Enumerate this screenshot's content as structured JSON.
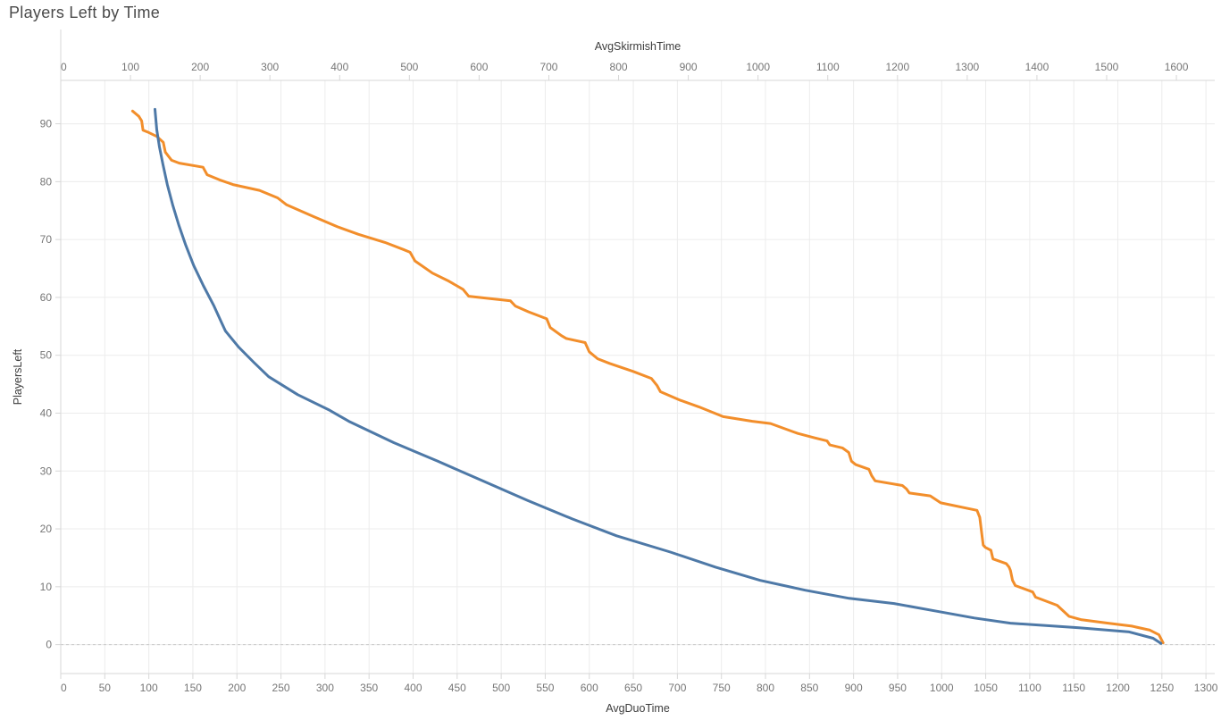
{
  "title": "Players Left by Time",
  "colors": {
    "title": "#4a4a4a",
    "axis_title": "#3d3d3d",
    "tick_label": "#767676",
    "axis_line": "#d7d7d7",
    "grid": "#ececec",
    "zero_line": "#c9c9c9",
    "skirmish_line": "#f28e2b",
    "duo_line": "#4e79a7",
    "background": "#ffffff"
  },
  "chart_data": {
    "type": "line",
    "title": "Players Left by Time",
    "ylabel": "PlayersLeft",
    "x_top_label": "AvgSkirmishTime",
    "x_bottom_label": "AvgDuoTime",
    "grid": "on",
    "legend": "none",
    "ylim": [
      -5,
      97.5
    ],
    "x_top_lim": [
      0,
      1655
    ],
    "x_bottom_lim": [
      0,
      1310
    ],
    "y_ticks": [
      0,
      10,
      20,
      30,
      40,
      50,
      60,
      70,
      80,
      90
    ],
    "x_top_ticks": [
      0,
      100,
      200,
      300,
      400,
      500,
      600,
      700,
      800,
      900,
      1000,
      1100,
      1200,
      1300,
      1400,
      1500,
      1600
    ],
    "x_bottom_ticks": [
      0,
      50,
      100,
      150,
      200,
      250,
      300,
      350,
      400,
      450,
      500,
      550,
      600,
      650,
      700,
      750,
      800,
      850,
      900,
      950,
      1000,
      1050,
      1100,
      1150,
      1200,
      1250,
      1300
    ],
    "series": [
      {
        "name": "AvgSkirmishTime",
        "axis": "top",
        "color": "#f28e2b",
        "points": [
          [
            103,
            92.2
          ],
          [
            112,
            91.3
          ],
          [
            116,
            90.5
          ],
          [
            118,
            88.9
          ],
          [
            126,
            88.5
          ],
          [
            138,
            87.8
          ],
          [
            147,
            86.8
          ],
          [
            150,
            85.1
          ],
          [
            159,
            83.7
          ],
          [
            170,
            83.2
          ],
          [
            204,
            82.5
          ],
          [
            210,
            81.2
          ],
          [
            228,
            80.3
          ],
          [
            247,
            79.5
          ],
          [
            285,
            78.5
          ],
          [
            311,
            77.2
          ],
          [
            324,
            76.0
          ],
          [
            362,
            74.0
          ],
          [
            397,
            72.2
          ],
          [
            427,
            70.9
          ],
          [
            465,
            69.5
          ],
          [
            491,
            68.3
          ],
          [
            501,
            67.8
          ],
          [
            508,
            66.3
          ],
          [
            533,
            64.2
          ],
          [
            555,
            62.9
          ],
          [
            577,
            61.4
          ],
          [
            585,
            60.2
          ],
          [
            645,
            59.4
          ],
          [
            652,
            58.5
          ],
          [
            671,
            57.5
          ],
          [
            697,
            56.3
          ],
          [
            702,
            54.8
          ],
          [
            718,
            53.4
          ],
          [
            725,
            52.9
          ],
          [
            752,
            52.2
          ],
          [
            758,
            50.6
          ],
          [
            770,
            49.4
          ],
          [
            787,
            48.6
          ],
          [
            821,
            47.2
          ],
          [
            847,
            46.0
          ],
          [
            855,
            44.8
          ],
          [
            860,
            43.7
          ],
          [
            889,
            42.2
          ],
          [
            915,
            41.1
          ],
          [
            950,
            39.4
          ],
          [
            992,
            38.6
          ],
          [
            1018,
            38.2
          ],
          [
            1057,
            36.5
          ],
          [
            1082,
            35.7
          ],
          [
            1099,
            35.2
          ],
          [
            1103,
            34.5
          ],
          [
            1121,
            34.0
          ],
          [
            1130,
            33.2
          ],
          [
            1134,
            31.7
          ],
          [
            1140,
            31.1
          ],
          [
            1159,
            30.3
          ],
          [
            1163,
            29.2
          ],
          [
            1168,
            28.3
          ],
          [
            1207,
            27.5
          ],
          [
            1213,
            26.9
          ],
          [
            1217,
            26.2
          ],
          [
            1247,
            25.7
          ],
          [
            1262,
            24.5
          ],
          [
            1314,
            23.2
          ],
          [
            1318,
            22.0
          ],
          [
            1321,
            19.0
          ],
          [
            1323,
            17.2
          ],
          [
            1326,
            16.8
          ],
          [
            1334,
            16.3
          ],
          [
            1337,
            14.8
          ],
          [
            1356,
            14.0
          ],
          [
            1360,
            13.4
          ],
          [
            1362,
            12.8
          ],
          [
            1365,
            11.1
          ],
          [
            1369,
            10.2
          ],
          [
            1394,
            9.1
          ],
          [
            1398,
            8.2
          ],
          [
            1429,
            6.8
          ],
          [
            1446,
            4.9
          ],
          [
            1464,
            4.3
          ],
          [
            1502,
            3.7
          ],
          [
            1536,
            3.2
          ],
          [
            1562,
            2.5
          ],
          [
            1575,
            1.7
          ],
          [
            1581,
            0.3
          ]
        ]
      },
      {
        "name": "AvgDuoTime",
        "axis": "bottom",
        "color": "#4e79a7",
        "points": [
          [
            107,
            92.5
          ],
          [
            109,
            89.0
          ],
          [
            112,
            86.0
          ],
          [
            116,
            83.0
          ],
          [
            121,
            79.5
          ],
          [
            127,
            76.0
          ],
          [
            134,
            72.5
          ],
          [
            142,
            69.0
          ],
          [
            151,
            65.5
          ],
          [
            162,
            62.0
          ],
          [
            174,
            58.5
          ],
          [
            183,
            55.5
          ],
          [
            187,
            54.2
          ],
          [
            202,
            51.4
          ],
          [
            219,
            48.8
          ],
          [
            236,
            46.3
          ],
          [
            269,
            43.2
          ],
          [
            304,
            40.6
          ],
          [
            327,
            38.6
          ],
          [
            378,
            34.9
          ],
          [
            428,
            31.7
          ],
          [
            479,
            28.3
          ],
          [
            530,
            24.9
          ],
          [
            581,
            21.7
          ],
          [
            631,
            18.8
          ],
          [
            692,
            16.0
          ],
          [
            743,
            13.4
          ],
          [
            794,
            11.1
          ],
          [
            845,
            9.4
          ],
          [
            895,
            8.0
          ],
          [
            946,
            7.1
          ],
          [
            997,
            5.7
          ],
          [
            1037,
            4.6
          ],
          [
            1078,
            3.7
          ],
          [
            1156,
            2.9
          ],
          [
            1213,
            2.2
          ],
          [
            1240,
            1.1
          ],
          [
            1249,
            0.2
          ]
        ]
      }
    ]
  }
}
